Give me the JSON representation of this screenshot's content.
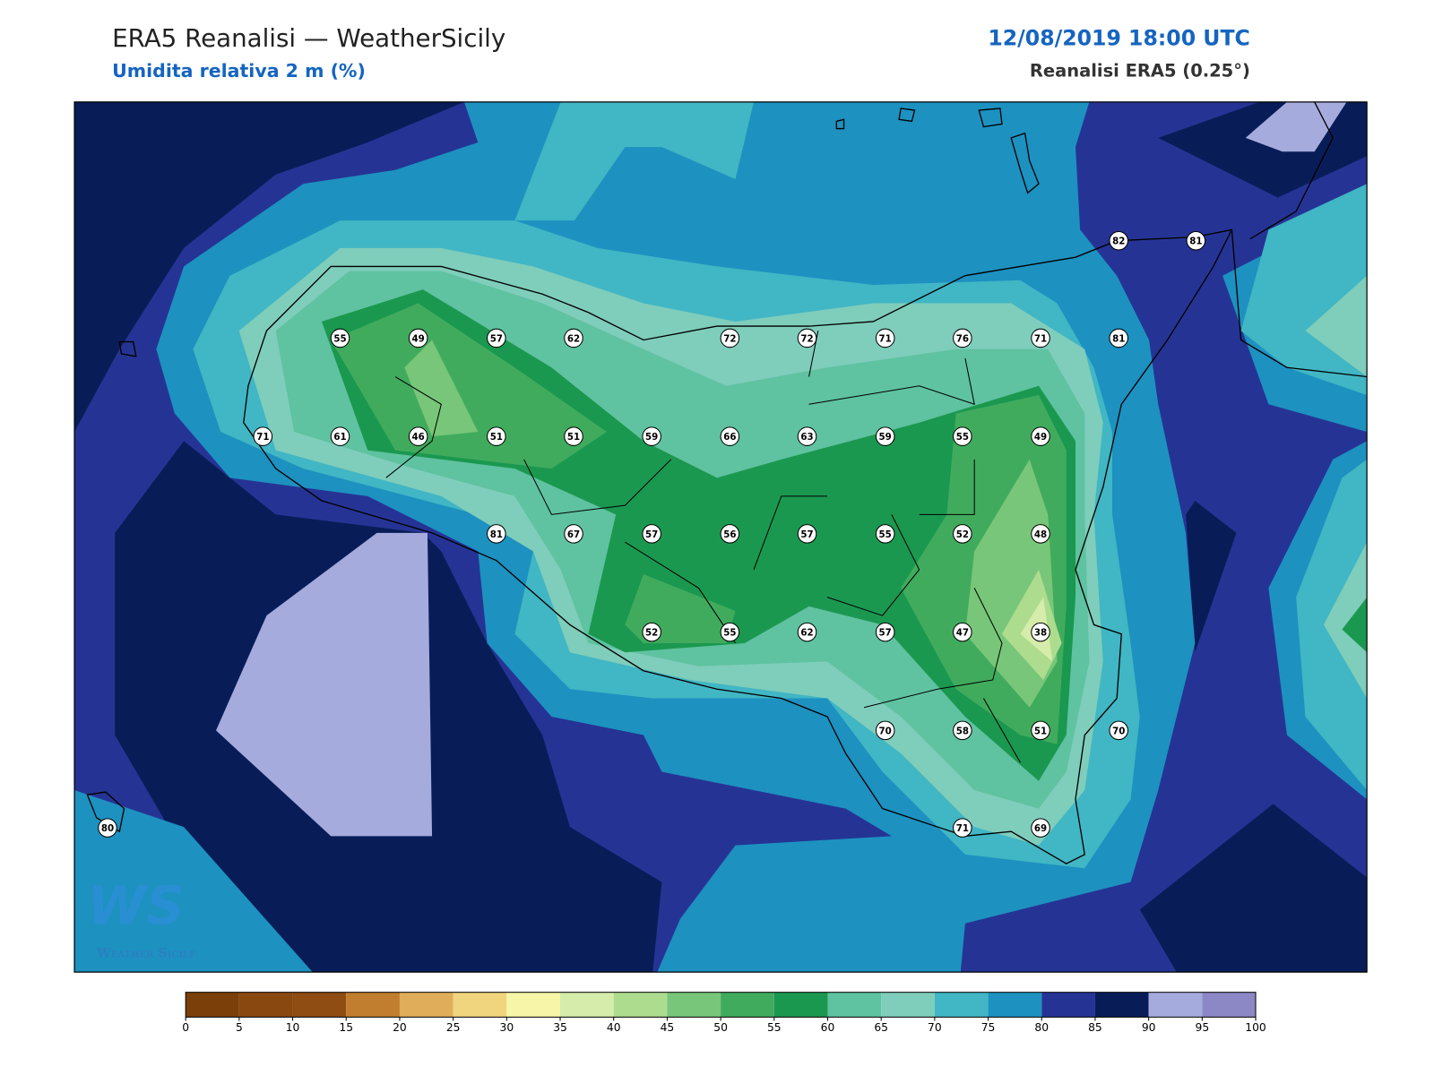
{
  "header": {
    "title": "ERA5 Reanalisi — WeatherSicily",
    "subtitle": "Umidita relativa 2 m (%)",
    "datetime": "12/08/2019 18:00 UTC",
    "source": "Reanalisi ERA5 (0.25°)"
  },
  "stations": [
    55,
    49,
    57,
    62,
    72,
    72,
    71,
    76,
    71,
    81,
    82,
    81,
    71,
    61,
    46,
    51,
    51,
    59,
    66,
    63,
    59,
    55,
    49,
    81,
    67,
    57,
    56,
    57,
    55,
    52,
    48,
    52,
    55,
    62,
    57,
    47,
    38,
    70,
    58,
    51,
    70,
    80,
    71,
    69
  ],
  "colorbar": {
    "ticks": [
      0,
      5,
      10,
      15,
      20,
      25,
      30,
      35,
      40,
      45,
      50,
      55,
      60,
      65,
      70,
      75,
      80,
      85,
      90,
      95,
      100
    ],
    "colors": [
      "#7b3f09",
      "#8a4811",
      "#8f4c13",
      "#c17e2e",
      "#e0ae5a",
      "#f0d57e",
      "#f6f5a8",
      "#d6ecaa",
      "#aedc8f",
      "#78c679",
      "#41ab5d",
      "#1b9850",
      "#5fc2a0",
      "#7fcdbb",
      "#41b6c4",
      "#1d91c0",
      "#253494",
      "#081d58",
      "#a5abdc",
      "#8c88c6"
    ]
  },
  "logo": {
    "mark": "WS",
    "text": "Weather Sicily"
  }
}
